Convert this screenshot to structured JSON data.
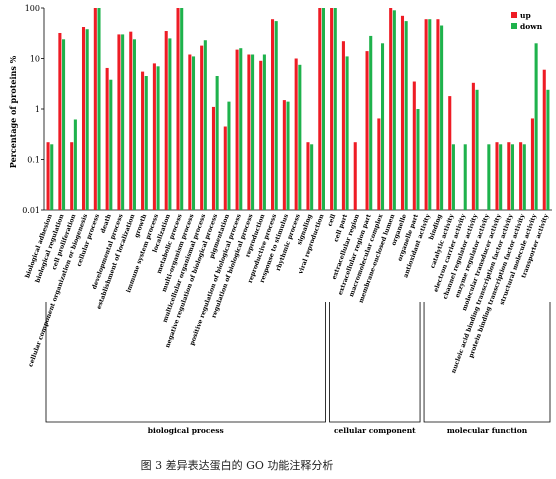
{
  "caption": "图 3 差异表达蛋白的 GO 功能注释分析",
  "chart_data": {
    "type": "bar",
    "ylabel": "Percentage of proteins %",
    "yscale": "log",
    "ylim": [
      0.01,
      100
    ],
    "ytick_labels": [
      "0.01",
      "0.1",
      "1",
      "10",
      "100"
    ],
    "legend_position": "top-right",
    "categories": [
      "biological adhesion",
      "biological regulation",
      "cell proliferation",
      "cellular component organization or biogenesis",
      "cellular process",
      "death",
      "developmental process",
      "establishment of localization",
      "growth",
      "immune system process",
      "localization",
      "metabolic process",
      "multi-organism process",
      "multicellular organismal process",
      "negative regulation of biological process",
      "pigmentation",
      "positive regulation of biological process",
      "regulation of biological process",
      "reproduction",
      "reproductive process",
      "response to stimulus",
      "rhythmic process",
      "signaling",
      "viral reproduction",
      "cell",
      "cell part",
      "extracellular region",
      "extracellular region part",
      "macromolecular complex",
      "membrane-enclosed lumen",
      "organelle",
      "organelle part",
      "antioxidant activity",
      "binding",
      "catalytic activity",
      "electron carrier activity",
      "channel regulator activity",
      "enzyme regulator activity",
      "molecular transducer activity",
      "nucleic acid binding transcription factor activity",
      "protein binding transcription factor activity",
      "structural molecule activity",
      "transporter activity"
    ],
    "series": [
      {
        "name": "up",
        "color": "#ee1c25",
        "values": [
          0.22,
          32,
          0.22,
          42,
          100,
          6.5,
          30,
          34,
          5.5,
          8,
          35,
          100,
          12,
          18,
          1.1,
          0.45,
          15,
          12,
          9,
          60,
          1.5,
          10,
          0.22,
          100,
          100,
          22,
          0.22,
          14,
          0.65,
          100,
          70,
          3.5,
          60,
          60,
          1.8,
          null,
          3.3,
          null,
          0.22,
          0.22,
          0.22,
          0.65,
          6
        ]
      },
      {
        "name": "down",
        "color": "#1eb24c",
        "values": [
          0.2,
          24,
          0.62,
          38,
          100,
          3.8,
          30,
          24,
          4.5,
          7,
          25,
          100,
          11,
          23,
          4.5,
          1.4,
          16,
          12,
          12,
          55,
          1.4,
          7.5,
          0.2,
          100,
          100,
          11,
          null,
          28,
          20,
          90,
          55,
          1,
          60,
          45,
          0.2,
          0.2,
          2.4,
          0.2,
          0.2,
          0.2,
          0.2,
          20,
          2.4
        ]
      }
    ],
    "groups": [
      {
        "label": "biological process",
        "start": 0,
        "end": 23
      },
      {
        "label": "cellular component",
        "start": 24,
        "end": 31
      },
      {
        "label": "molecular function",
        "start": 32,
        "end": 42
      }
    ]
  }
}
